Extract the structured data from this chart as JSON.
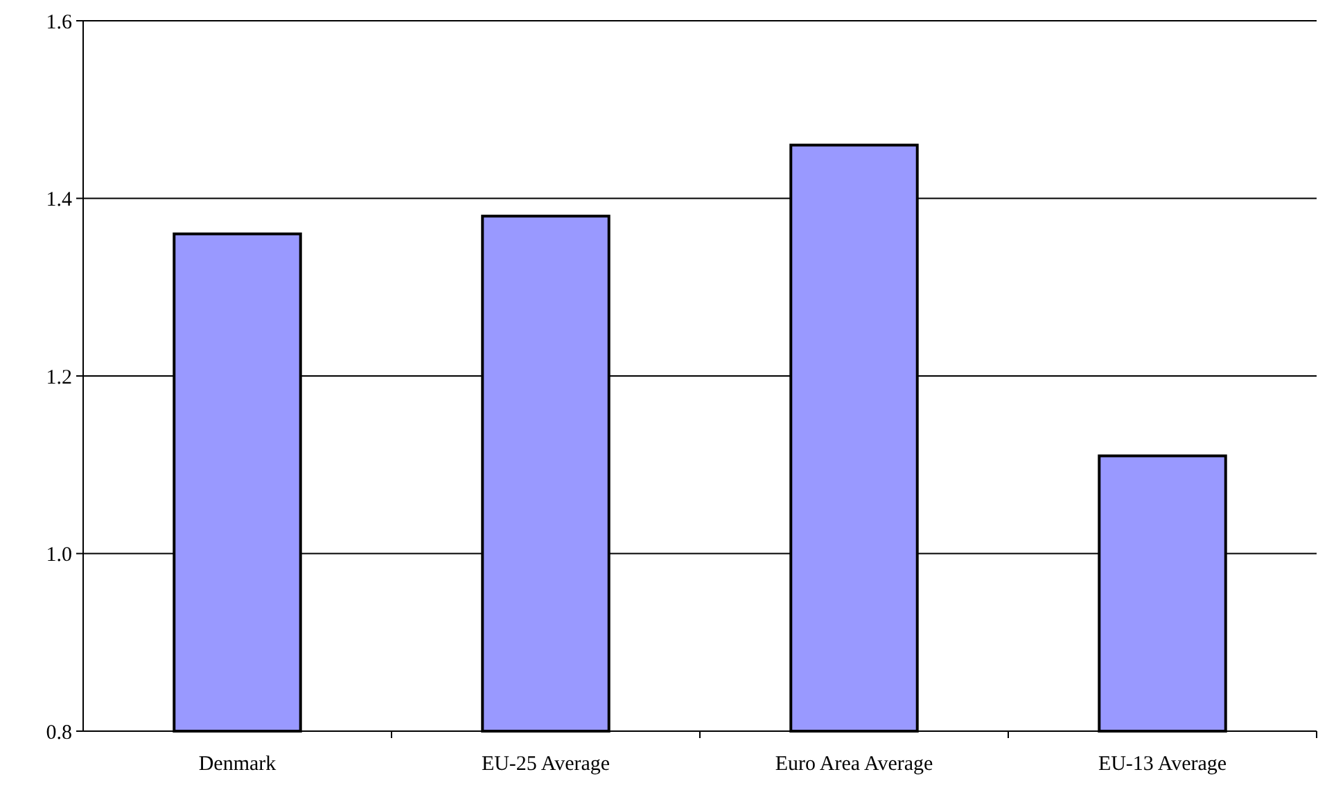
{
  "chart_data": {
    "type": "bar",
    "categories": [
      "Denmark",
      "EU-25 Average",
      "Euro Area Average",
      "EU-13 Average"
    ],
    "values": [
      1.36,
      1.38,
      1.46,
      1.11
    ],
    "color": "#9999ff",
    "ylim": [
      0.8,
      1.6
    ],
    "yticks": [
      {
        "value": 0.8,
        "label": "0.8"
      },
      {
        "value": 1.0,
        "label": "1.0"
      },
      {
        "value": 1.2,
        "label": "1.2"
      },
      {
        "value": 1.4,
        "label": "1.4"
      },
      {
        "value": 1.6,
        "label": "1.6"
      }
    ],
    "grid": "y"
  }
}
